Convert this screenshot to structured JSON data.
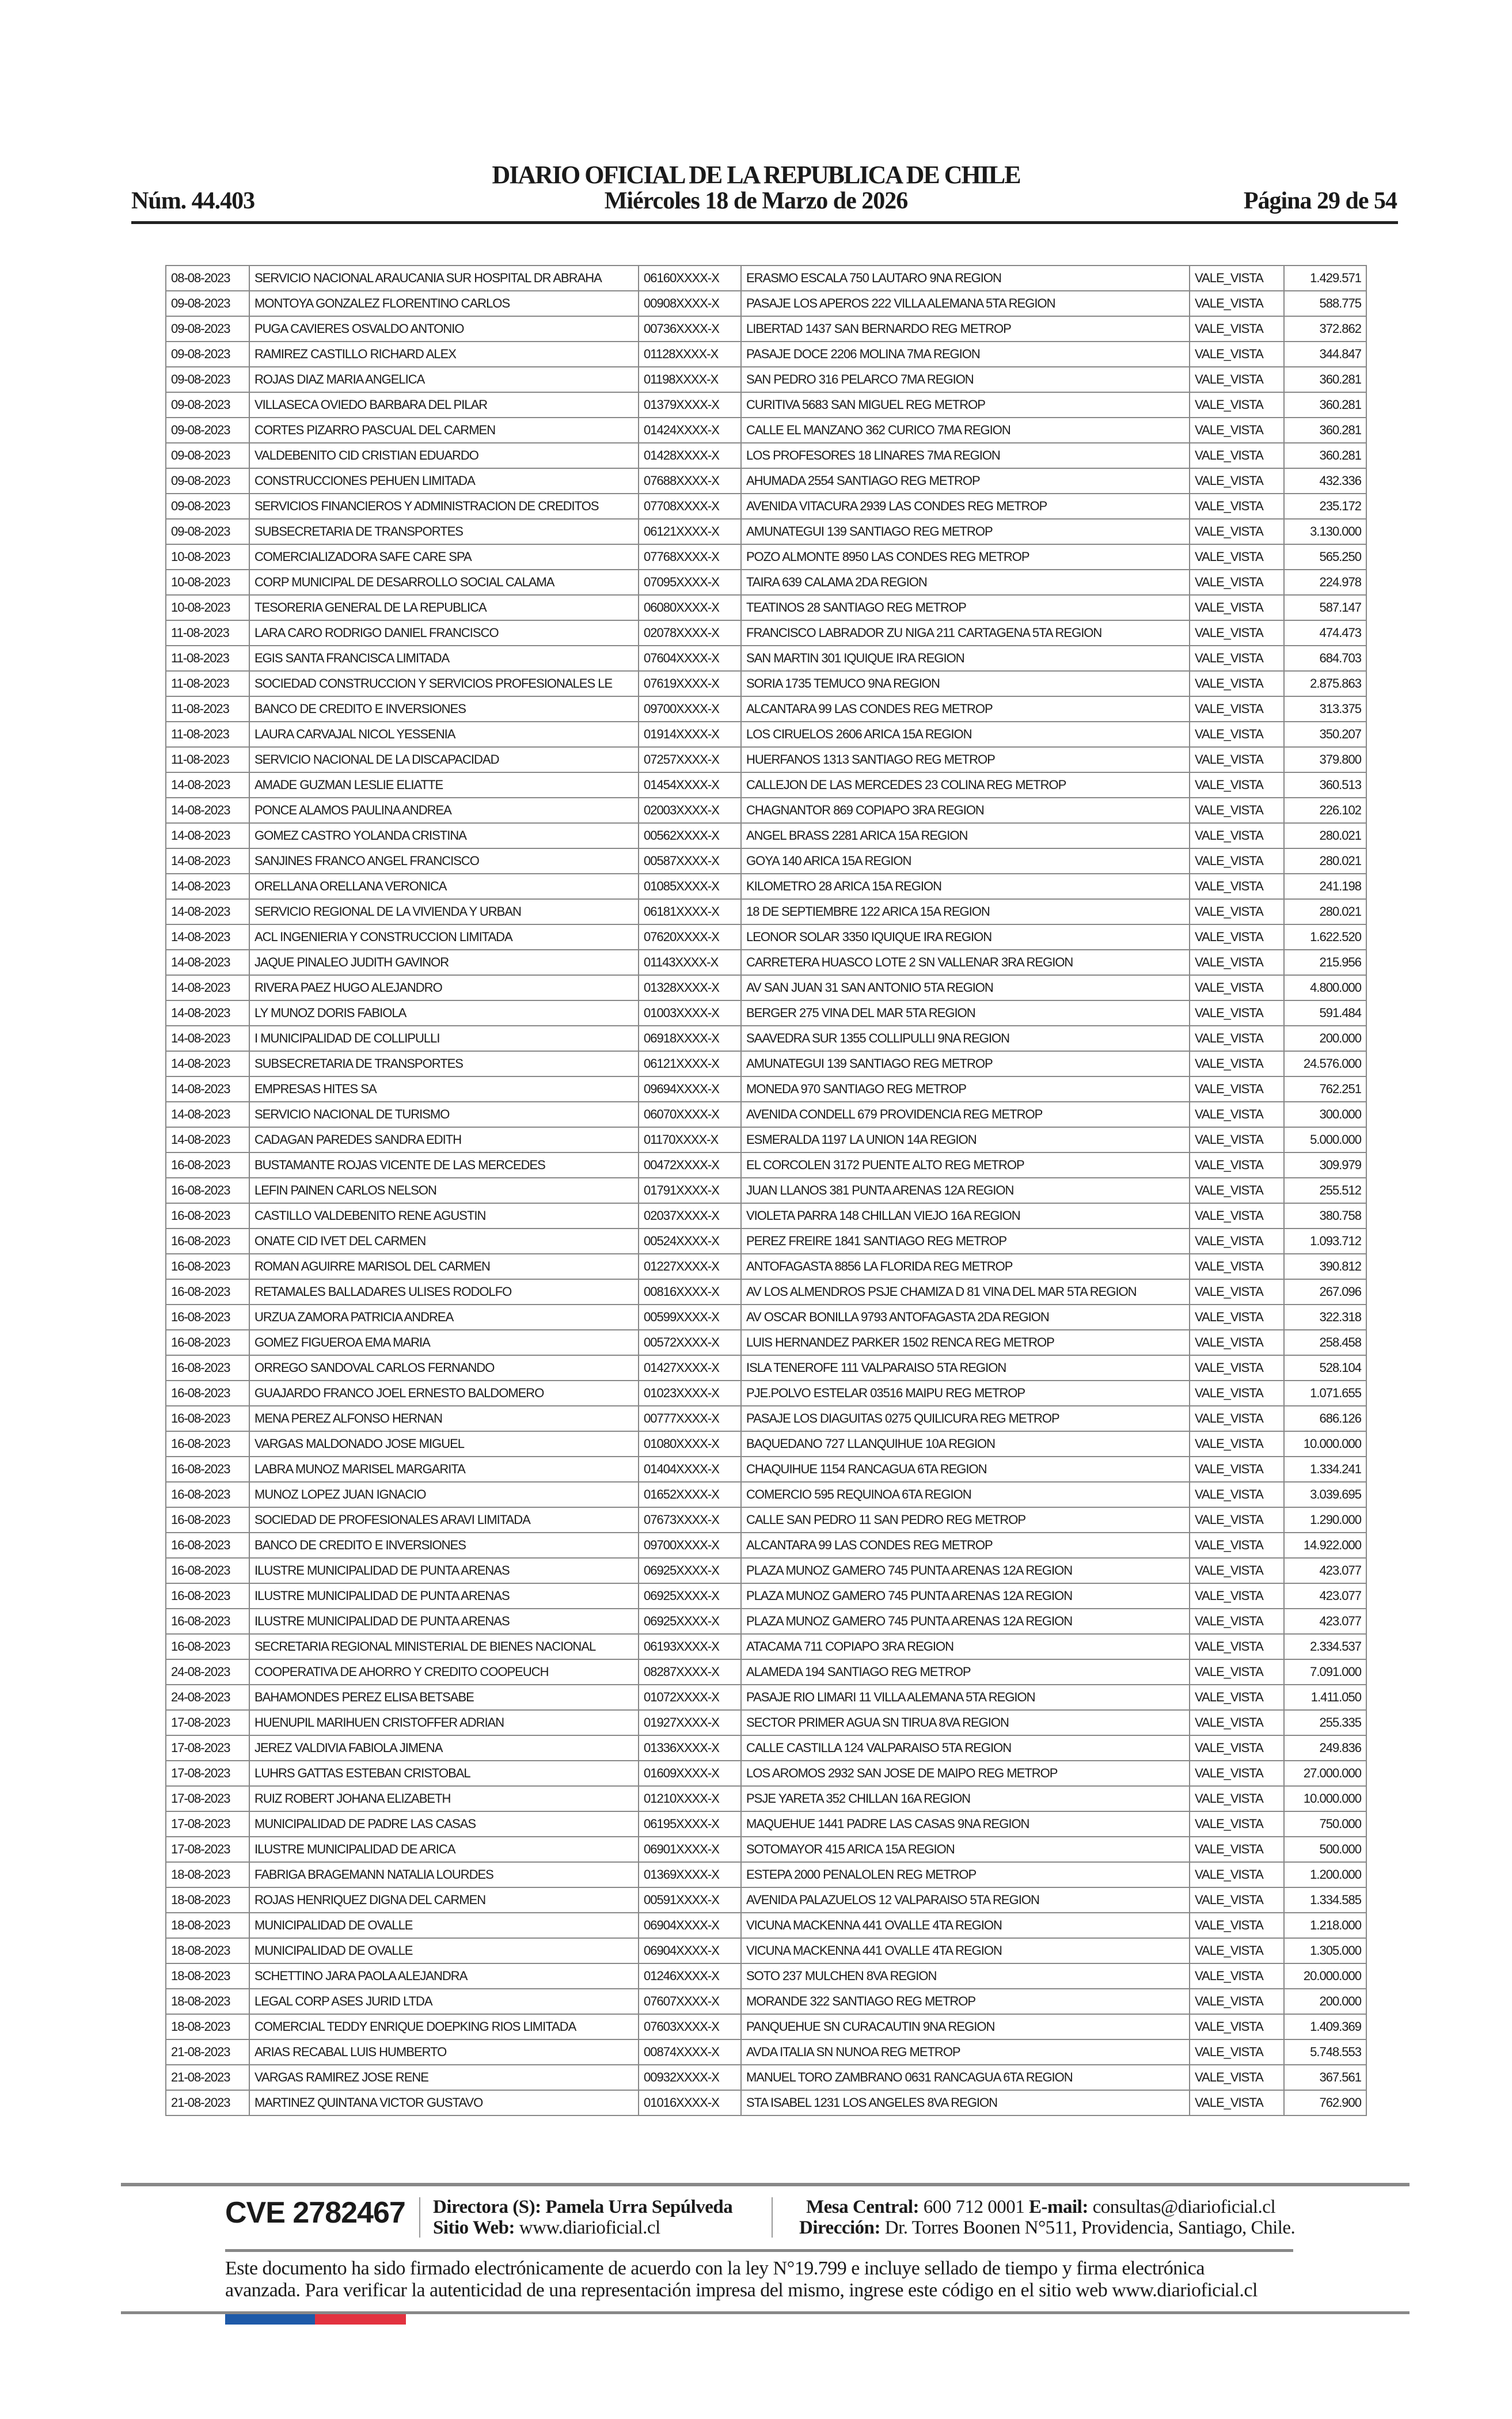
{
  "header": {
    "title": "DIARIO OFICIAL DE LA REPUBLICA DE CHILE",
    "number": "Núm. 44.403",
    "date": "Miércoles 18 de Marzo de 2026",
    "page": "Página 29 de 54"
  },
  "rows": [
    [
      "08-08-2023",
      "SERVICIO NACIONAL ARAUCANIA SUR HOSPITAL DR ABRAHA",
      "06160XXXX-X",
      "ERASMO ESCALA 750 LAUTARO 9NA REGION",
      "VALE_VISTA",
      "1.429.571"
    ],
    [
      "09-08-2023",
      "MONTOYA GONZALEZ FLORENTINO CARLOS",
      "00908XXXX-X",
      "PASAJE LOS APEROS 222 VILLA ALEMANA 5TA REGION",
      "VALE_VISTA",
      "588.775"
    ],
    [
      "09-08-2023",
      "PUGA CAVIERES OSVALDO ANTONIO",
      "00736XXXX-X",
      "LIBERTAD 1437 SAN BERNARDO REG METROP",
      "VALE_VISTA",
      "372.862"
    ],
    [
      "09-08-2023",
      "RAMIREZ CASTILLO RICHARD ALEX",
      "01128XXXX-X",
      "PASAJE DOCE 2206 MOLINA 7MA REGION",
      "VALE_VISTA",
      "344.847"
    ],
    [
      "09-08-2023",
      "ROJAS DIAZ MARIA ANGELICA",
      "01198XXXX-X",
      "SAN PEDRO 316 PELARCO 7MA REGION",
      "VALE_VISTA",
      "360.281"
    ],
    [
      "09-08-2023",
      "VILLASECA OVIEDO BARBARA DEL PILAR",
      "01379XXXX-X",
      "CURITIVA 5683 SAN MIGUEL REG METROP",
      "VALE_VISTA",
      "360.281"
    ],
    [
      "09-08-2023",
      "CORTES PIZARRO PASCUAL DEL CARMEN",
      "01424XXXX-X",
      "CALLE EL MANZANO 362 CURICO 7MA REGION",
      "VALE_VISTA",
      "360.281"
    ],
    [
      "09-08-2023",
      "VALDEBENITO CID CRISTIAN EDUARDO",
      "01428XXXX-X",
      "LOS PROFESORES 18 LINARES 7MA REGION",
      "VALE_VISTA",
      "360.281"
    ],
    [
      "09-08-2023",
      "CONSTRUCCIONES PEHUEN LIMITADA",
      "07688XXXX-X",
      "AHUMADA 2554 SANTIAGO REG METROP",
      "VALE_VISTA",
      "432.336"
    ],
    [
      "09-08-2023",
      "SERVICIOS FINANCIEROS Y ADMINISTRACION DE CREDITOS",
      "07708XXXX-X",
      "AVENIDA VITACURA 2939 LAS CONDES REG METROP",
      "VALE_VISTA",
      "235.172"
    ],
    [
      "09-08-2023",
      "SUBSECRETARIA DE TRANSPORTES",
      "06121XXXX-X",
      "AMUNATEGUI 139 SANTIAGO REG METROP",
      "VALE_VISTA",
      "3.130.000"
    ],
    [
      "10-08-2023",
      "COMERCIALIZADORA SAFE CARE SPA",
      "07768XXXX-X",
      "POZO ALMONTE 8950 LAS CONDES REG METROP",
      "VALE_VISTA",
      "565.250"
    ],
    [
      "10-08-2023",
      "CORP  MUNICIPAL DE DESARROLLO SOCIAL CALAMA",
      "07095XXXX-X",
      "TAIRA 639 CALAMA 2DA REGION",
      "VALE_VISTA",
      "224.978"
    ],
    [
      "10-08-2023",
      "TESORERIA GENERAL DE LA REPUBLICA",
      "06080XXXX-X",
      "TEATINOS 28 SANTIAGO REG METROP",
      "VALE_VISTA",
      "587.147"
    ],
    [
      "11-08-2023",
      "LARA CARO RODRIGO DANIEL FRANCISCO",
      "02078XXXX-X",
      "FRANCISCO LABRADOR ZU NIGA 211 CARTAGENA 5TA REGION",
      "VALE_VISTA",
      "474.473"
    ],
    [
      "11-08-2023",
      "EGIS SANTA FRANCISCA LIMITADA",
      "07604XXXX-X",
      "SAN MARTIN 301 IQUIQUE IRA REGION",
      "VALE_VISTA",
      "684.703"
    ],
    [
      "11-08-2023",
      "SOCIEDAD CONSTRUCCION Y SERVICIOS PROFESIONALES LE",
      "07619XXXX-X",
      "SORIA 1735 TEMUCO 9NA REGION",
      "VALE_VISTA",
      "2.875.863"
    ],
    [
      "11-08-2023",
      "BANCO DE CREDITO E INVERSIONES",
      "09700XXXX-X",
      "ALCANTARA 99 LAS CONDES REG METROP",
      "VALE_VISTA",
      "313.375"
    ],
    [
      "11-08-2023",
      "LAURA CARVAJAL NICOL YESSENIA",
      "01914XXXX-X",
      "LOS CIRUELOS 2606 ARICA 15A REGION",
      "VALE_VISTA",
      "350.207"
    ],
    [
      "11-08-2023",
      "SERVICIO NACIONAL DE LA DISCAPACIDAD",
      "07257XXXX-X",
      "HUERFANOS 1313 SANTIAGO REG METROP",
      "VALE_VISTA",
      "379.800"
    ],
    [
      "14-08-2023",
      "AMADE GUZMAN LESLIE ELIATTE",
      "01454XXXX-X",
      "CALLEJON DE LAS MERCEDES 23 COLINA REG METROP",
      "VALE_VISTA",
      "360.513"
    ],
    [
      "14-08-2023",
      "PONCE ALAMOS PAULINA ANDREA",
      "02003XXXX-X",
      "CHAGNANTOR 869 COPIAPO 3RA REGION",
      "VALE_VISTA",
      "226.102"
    ],
    [
      "14-08-2023",
      "GOMEZ CASTRO YOLANDA CRISTINA",
      "00562XXXX-X",
      "ANGEL BRASS 2281 ARICA 15A REGION",
      "VALE_VISTA",
      "280.021"
    ],
    [
      "14-08-2023",
      "SANJINES FRANCO ANGEL FRANCISCO",
      "00587XXXX-X",
      "GOYA 140 ARICA 15A REGION",
      "VALE_VISTA",
      "280.021"
    ],
    [
      "14-08-2023",
      "ORELLANA ORELLANA VERONICA",
      "01085XXXX-X",
      "KILOMETRO 28 ARICA 15A REGION",
      "VALE_VISTA",
      "241.198"
    ],
    [
      "14-08-2023",
      "SERVICIO REGIONAL DE LA VIVIENDA Y URBAN",
      "06181XXXX-X",
      "18 DE SEPTIEMBRE 122 ARICA 15A REGION",
      "VALE_VISTA",
      "280.021"
    ],
    [
      "14-08-2023",
      "ACL INGENIERIA Y CONSTRUCCION LIMITADA",
      "07620XXXX-X",
      "LEONOR SOLAR 3350 IQUIQUE IRA REGION",
      "VALE_VISTA",
      "1.622.520"
    ],
    [
      "14-08-2023",
      "JAQUE PINALEO JUDITH GAVINOR",
      "01143XXXX-X",
      "CARRETERA HUASCO LOTE 2 SN VALLENAR 3RA REGION",
      "VALE_VISTA",
      "215.956"
    ],
    [
      "14-08-2023",
      "RIVERA PAEZ HUGO ALEJANDRO",
      "01328XXXX-X",
      "AV SAN JUAN 31 SAN ANTONIO 5TA REGION",
      "VALE_VISTA",
      "4.800.000"
    ],
    [
      "14-08-2023",
      "LY MUNOZ DORIS FABIOLA",
      "01003XXXX-X",
      "BERGER 275 VINA DEL MAR 5TA REGION",
      "VALE_VISTA",
      "591.484"
    ],
    [
      "14-08-2023",
      "I MUNICIPALIDAD DE COLLIPULLI",
      "06918XXXX-X",
      "SAAVEDRA SUR 1355 COLLIPULLI 9NA REGION",
      "VALE_VISTA",
      "200.000"
    ],
    [
      "14-08-2023",
      "SUBSECRETARIA DE TRANSPORTES",
      "06121XXXX-X",
      "AMUNATEGUI 139 SANTIAGO REG METROP",
      "VALE_VISTA",
      "24.576.000"
    ],
    [
      "14-08-2023",
      "EMPRESAS HITES SA",
      "09694XXXX-X",
      "MONEDA 970 SANTIAGO REG METROP",
      "VALE_VISTA",
      "762.251"
    ],
    [
      "14-08-2023",
      "SERVICIO NACIONAL DE TURISMO",
      "06070XXXX-X",
      "AVENIDA CONDELL 679 PROVIDENCIA REG METROP",
      "VALE_VISTA",
      "300.000"
    ],
    [
      "14-08-2023",
      "CADAGAN PAREDES SANDRA EDITH",
      "01170XXXX-X",
      "ESMERALDA 1197 LA UNION 14A REGION",
      "VALE_VISTA",
      "5.000.000"
    ],
    [
      "16-08-2023",
      "BUSTAMANTE ROJAS VICENTE DE LAS MERCEDES",
      "00472XXXX-X",
      "EL CORCOLEN 3172 PUENTE ALTO REG METROP",
      "VALE_VISTA",
      "309.979"
    ],
    [
      "16-08-2023",
      "LEFIN PAINEN CARLOS NELSON",
      "01791XXXX-X",
      "JUAN LLANOS 381 PUNTA ARENAS 12A REGION",
      "VALE_VISTA",
      "255.512"
    ],
    [
      "16-08-2023",
      "CASTILLO VALDEBENITO RENE AGUSTIN",
      "02037XXXX-X",
      "VIOLETA PARRA 148 CHILLAN VIEJO 16A REGION",
      "VALE_VISTA",
      "380.758"
    ],
    [
      "16-08-2023",
      "ONATE CID IVET DEL CARMEN",
      "00524XXXX-X",
      "PEREZ FREIRE 1841 SANTIAGO REG METROP",
      "VALE_VISTA",
      "1.093.712"
    ],
    [
      "16-08-2023",
      "ROMAN AGUIRRE MARISOL DEL CARMEN",
      "01227XXXX-X",
      "ANTOFAGASTA 8856 LA FLORIDA REG METROP",
      "VALE_VISTA",
      "390.812"
    ],
    [
      "16-08-2023",
      "RETAMALES BALLADARES ULISES RODOLFO",
      "00816XXXX-X",
      "AV LOS ALMENDROS PSJE CHAMIZA D 81 VINA DEL MAR 5TA REGION",
      "VALE_VISTA",
      "267.096"
    ],
    [
      "16-08-2023",
      "URZUA ZAMORA PATRICIA ANDREA",
      "00599XXXX-X",
      "AV OSCAR BONILLA 9793 ANTOFAGASTA 2DA REGION",
      "VALE_VISTA",
      "322.318"
    ],
    [
      "16-08-2023",
      "GOMEZ FIGUEROA EMA MARIA",
      "00572XXXX-X",
      "LUIS HERNANDEZ PARKER 1502 RENCA REG METROP",
      "VALE_VISTA",
      "258.458"
    ],
    [
      "16-08-2023",
      "ORREGO SANDOVAL CARLOS FERNANDO",
      "01427XXXX-X",
      "ISLA TENEROFE 111 VALPARAISO 5TA REGION",
      "VALE_VISTA",
      "528.104"
    ],
    [
      "16-08-2023",
      "GUAJARDO FRANCO JOEL ERNESTO BALDOMERO",
      "01023XXXX-X",
      "PJE.POLVO ESTELAR 03516 MAIPU REG METROP",
      "VALE_VISTA",
      "1.071.655"
    ],
    [
      "16-08-2023",
      "MENA PEREZ ALFONSO HERNAN",
      "00777XXXX-X",
      "PASAJE LOS DIAGUITAS 0275 QUILICURA REG METROP",
      "VALE_VISTA",
      "686.126"
    ],
    [
      "16-08-2023",
      "VARGAS MALDONADO JOSE MIGUEL",
      "01080XXXX-X",
      "BAQUEDANO 727 LLANQUIHUE 10A REGION",
      "VALE_VISTA",
      "10.000.000"
    ],
    [
      "16-08-2023",
      "LABRA MUNOZ MARISEL MARGARITA",
      "01404XXXX-X",
      "CHAQUIHUE 1154 RANCAGUA 6TA REGION",
      "VALE_VISTA",
      "1.334.241"
    ],
    [
      "16-08-2023",
      "MUNOZ LOPEZ JUAN IGNACIO",
      "01652XXXX-X",
      "COMERCIO 595 REQUINOA 6TA REGION",
      "VALE_VISTA",
      "3.039.695"
    ],
    [
      "16-08-2023",
      "SOCIEDAD DE PROFESIONALES ARAVI LIMITADA",
      "07673XXXX-X",
      "CALLE SAN PEDRO 11 SAN PEDRO REG METROP",
      "VALE_VISTA",
      "1.290.000"
    ],
    [
      "16-08-2023",
      "BANCO DE CREDITO E INVERSIONES",
      "09700XXXX-X",
      "ALCANTARA 99 LAS CONDES REG METROP",
      "VALE_VISTA",
      "14.922.000"
    ],
    [
      "16-08-2023",
      "ILUSTRE MUNICIPALIDAD DE PUNTA ARENAS",
      "06925XXXX-X",
      "PLAZA MUNOZ GAMERO 745 PUNTA ARENAS 12A REGION",
      "VALE_VISTA",
      "423.077"
    ],
    [
      "16-08-2023",
      "ILUSTRE MUNICIPALIDAD DE PUNTA ARENAS",
      "06925XXXX-X",
      "PLAZA MUNOZ GAMERO 745 PUNTA ARENAS 12A REGION",
      "VALE_VISTA",
      "423.077"
    ],
    [
      "16-08-2023",
      "ILUSTRE MUNICIPALIDAD DE PUNTA ARENAS",
      "06925XXXX-X",
      "PLAZA MUNOZ GAMERO 745 PUNTA ARENAS 12A REGION",
      "VALE_VISTA",
      "423.077"
    ],
    [
      "16-08-2023",
      "SECRETARIA REGIONAL MINISTERIAL DE BIENES NACIONAL",
      "06193XXXX-X",
      "ATACAMA 711 COPIAPO 3RA REGION",
      "VALE_VISTA",
      "2.334.537"
    ],
    [
      "24-08-2023",
      "COOPERATIVA DE AHORRO Y CREDITO COOPEUCH",
      "08287XXXX-X",
      "ALAMEDA 194 SANTIAGO REG METROP",
      "VALE_VISTA",
      "7.091.000"
    ],
    [
      "24-08-2023",
      "BAHAMONDES PEREZ ELISA BETSABE",
      "01072XXXX-X",
      "PASAJE RIO LIMARI 11 VILLA ALEMANA 5TA REGION",
      "VALE_VISTA",
      "1.411.050"
    ],
    [
      "17-08-2023",
      "HUENUPIL MARIHUEN CRISTOFFER ADRIAN",
      "01927XXXX-X",
      "SECTOR PRIMER AGUA SN TIRUA 8VA REGION",
      "VALE_VISTA",
      "255.335"
    ],
    [
      "17-08-2023",
      "JEREZ VALDIVIA FABIOLA JIMENA",
      "01336XXXX-X",
      "CALLE CASTILLA 124 VALPARAISO 5TA REGION",
      "VALE_VISTA",
      "249.836"
    ],
    [
      "17-08-2023",
      "LUHRS GATTAS ESTEBAN CRISTOBAL",
      "01609XXXX-X",
      "LOS AROMOS 2932 SAN JOSE DE MAIPO REG METROP",
      "VALE_VISTA",
      "27.000.000"
    ],
    [
      "17-08-2023",
      "RUIZ ROBERT JOHANA ELIZABETH",
      "01210XXXX-X",
      "PSJE YARETA 352 CHILLAN 16A REGION",
      "VALE_VISTA",
      "10.000.000"
    ],
    [
      "17-08-2023",
      "MUNICIPALIDAD DE PADRE LAS CASAS",
      "06195XXXX-X",
      "MAQUEHUE 1441 PADRE LAS CASAS 9NA REGION",
      "VALE_VISTA",
      "750.000"
    ],
    [
      "17-08-2023",
      "ILUSTRE MUNICIPALIDAD DE ARICA",
      "06901XXXX-X",
      "SOTOMAYOR 415 ARICA 15A REGION",
      "VALE_VISTA",
      "500.000"
    ],
    [
      "18-08-2023",
      "FABRIGA BRAGEMANN NATALIA LOURDES",
      "01369XXXX-X",
      "ESTEPA 2000 PENALOLEN REG METROP",
      "VALE_VISTA",
      "1.200.000"
    ],
    [
      "18-08-2023",
      "ROJAS HENRIQUEZ DIGNA DEL CARMEN",
      "00591XXXX-X",
      "AVENIDA PALAZUELOS 12 VALPARAISO 5TA REGION",
      "VALE_VISTA",
      "1.334.585"
    ],
    [
      "18-08-2023",
      "MUNICIPALIDAD DE OVALLE",
      "06904XXXX-X",
      "VICUNA MACKENNA 441 OVALLE 4TA REGION",
      "VALE_VISTA",
      "1.218.000"
    ],
    [
      "18-08-2023",
      "MUNICIPALIDAD DE OVALLE",
      "06904XXXX-X",
      "VICUNA MACKENNA 441 OVALLE 4TA REGION",
      "VALE_VISTA",
      "1.305.000"
    ],
    [
      "18-08-2023",
      "SCHETTINO JARA PAOLA ALEJANDRA",
      "01246XXXX-X",
      "SOTO 237 MULCHEN 8VA REGION",
      "VALE_VISTA",
      "20.000.000"
    ],
    [
      "18-08-2023",
      "LEGAL CORP ASES JURID LTDA",
      "07607XXXX-X",
      "MORANDE 322 SANTIAGO REG METROP",
      "VALE_VISTA",
      "200.000"
    ],
    [
      "18-08-2023",
      "COMERCIAL TEDDY ENRIQUE DOEPKING RIOS LIMITADA",
      "07603XXXX-X",
      "PANQUEHUE SN CURACAUTIN 9NA REGION",
      "VALE_VISTA",
      "1.409.369"
    ],
    [
      "21-08-2023",
      "ARIAS RECABAL LUIS HUMBERTO",
      "00874XXXX-X",
      "AVDA ITALIA SN NUNOA REG METROP",
      "VALE_VISTA",
      "5.748.553"
    ],
    [
      "21-08-2023",
      "VARGAS RAMIREZ JOSE RENE",
      "00932XXXX-X",
      "MANUEL TORO ZAMBRANO 0631 RANCAGUA 6TA REGION",
      "VALE_VISTA",
      "367.561"
    ],
    [
      "21-08-2023",
      "MARTINEZ QUINTANA VICTOR GUSTAVO",
      "01016XXXX-X",
      "STA ISABEL 1231 LOS ANGELES 8VA REGION",
      "VALE_VISTA",
      "762.900"
    ]
  ],
  "footer": {
    "cve": "CVE 2782467",
    "director_label": "Directora (S):",
    "director_name": "Pamela Urra Sepúlveda",
    "web_label": "Sitio Web:",
    "web_value": "www.diarioficial.cl",
    "phone_label": "Mesa Central:",
    "phone_value": "600 712 0001",
    "email_label": "E-mail:",
    "email_value": "consultas@diarioficial.cl",
    "address_label": "Dirección:",
    "address_value": "Dr. Torres Boonen N°511, Providencia, Santiago, Chile.",
    "legal_line1": "Este documento ha sido firmado electrónicamente de acuerdo con la ley N°19.799 e incluye sellado de tiempo y firma electrónica",
    "legal_line2": "avanzada. Para verificar la autenticidad de una representación impresa del mismo, ingrese este código en el sitio web www.diarioficial.cl",
    "flag_colors": [
      "#1e5aa8",
      "#e2323f"
    ]
  }
}
